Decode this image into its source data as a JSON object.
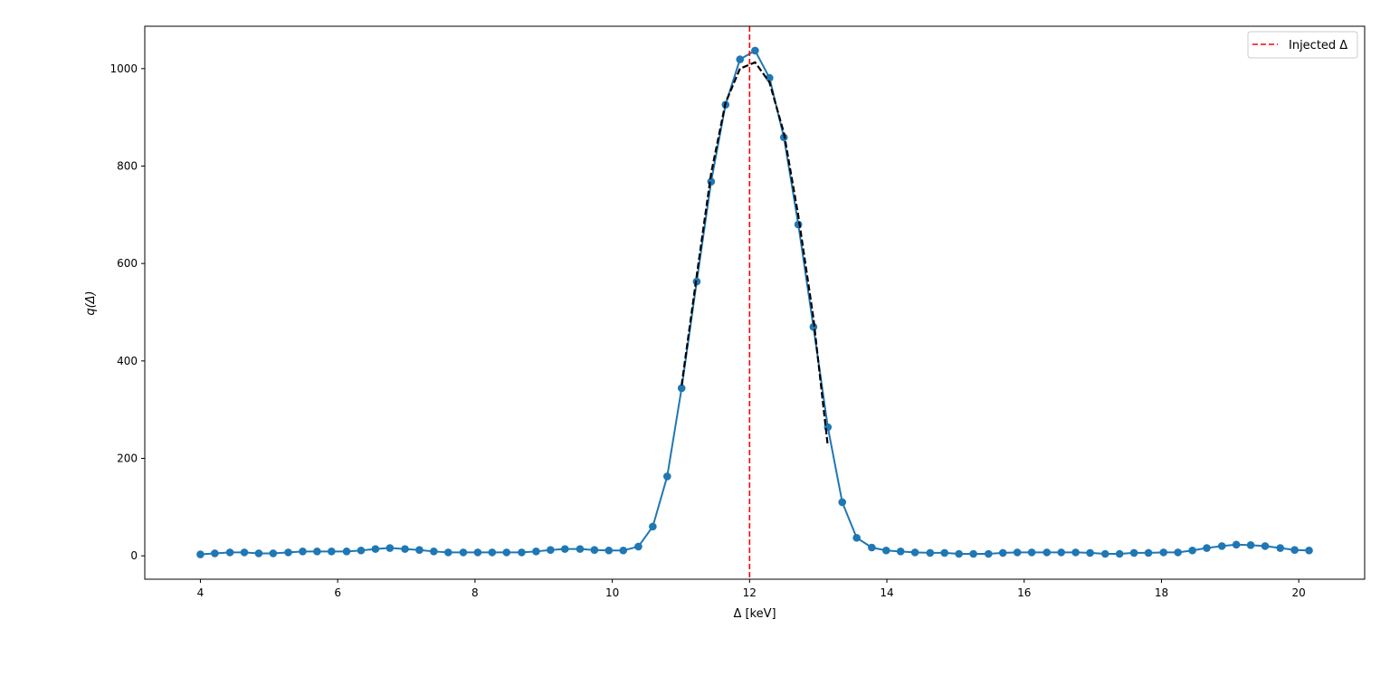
{
  "chart_data": {
    "type": "line",
    "title": "",
    "xlabel": "Δ [keV]",
    "ylabel": "q(Δ)",
    "xlim": [
      3.19,
      20.96
    ],
    "ylim": [
      -48,
      1087
    ],
    "xticks": [
      "4",
      "6",
      "8",
      "10",
      "12",
      "14",
      "16",
      "18",
      "20"
    ],
    "yticks": [
      "0",
      "200",
      "400",
      "600",
      "800",
      "1000"
    ],
    "grid": false,
    "legend_position": "top-right",
    "series": [
      {
        "color": "#1f77b4",
        "marker": "circle",
        "x": [
          4.0,
          4.21,
          4.43,
          4.64,
          4.85,
          5.06,
          5.28,
          5.49,
          5.7,
          5.91,
          6.13,
          6.34,
          6.55,
          6.76,
          6.98,
          7.19,
          7.4,
          7.61,
          7.83,
          8.04,
          8.25,
          8.46,
          8.68,
          8.89,
          9.1,
          9.31,
          9.53,
          9.74,
          9.95,
          10.16,
          10.38,
          10.59,
          10.8,
          11.01,
          11.23,
          11.44,
          11.65,
          11.86,
          12.08,
          12.29,
          12.5,
          12.71,
          12.93,
          13.14,
          13.35,
          13.56,
          13.78,
          13.99,
          14.2,
          14.41,
          14.63,
          14.84,
          15.05,
          15.26,
          15.48,
          15.69,
          15.9,
          16.11,
          16.33,
          16.54,
          16.75,
          16.96,
          17.18,
          17.39,
          17.6,
          17.81,
          18.03,
          18.24,
          18.45,
          18.66,
          18.88,
          19.09,
          19.3,
          19.51,
          19.73,
          19.94,
          20.15
        ],
        "y": [
          3,
          5,
          7,
          7,
          5,
          5,
          7,
          9,
          9,
          9,
          9,
          11,
          14,
          16,
          14,
          12,
          9,
          7,
          7,
          7,
          7,
          7,
          7,
          9,
          12,
          14,
          14,
          12,
          11,
          11,
          19,
          60,
          163,
          344,
          563,
          768,
          926,
          1019,
          1037,
          981,
          859,
          680,
          470,
          264,
          110,
          37,
          17,
          11,
          9,
          7,
          6,
          6,
          4,
          4,
          4,
          6,
          7,
          7,
          7,
          7,
          7,
          6,
          4,
          4,
          6,
          6,
          7,
          7,
          11,
          16,
          20,
          23,
          22,
          20,
          16,
          12,
          11
        ]
      },
      {
        "color": "#000000",
        "style": "dashed",
        "x": [
          11.01,
          11.23,
          11.44,
          11.65,
          11.86,
          12.08,
          12.29,
          12.5,
          12.71,
          12.93,
          13.14
        ],
        "y": [
          350,
          575,
          785,
          930,
          1000,
          1013,
          972,
          868,
          698,
          488,
          225
        ]
      }
    ],
    "vlines": [
      {
        "name": "Injected Δ",
        "x": 12,
        "color": "#ff0000",
        "style": "dashed"
      }
    ],
    "legend": [
      "Injected Δ"
    ]
  }
}
